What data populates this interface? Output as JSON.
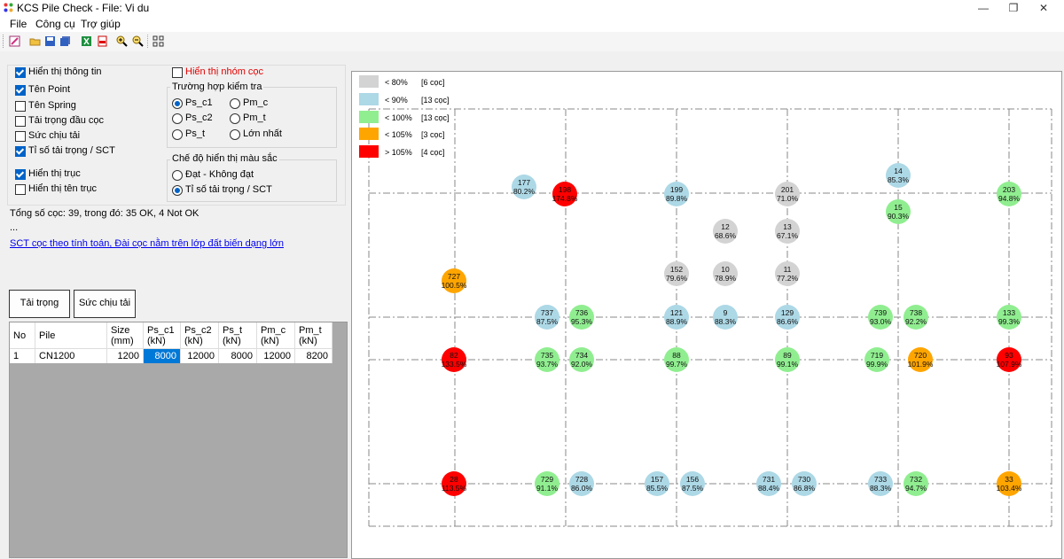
{
  "window": {
    "title": "KCS Pile Check - File: Vi du",
    "minimize": "—",
    "maximize": "❐",
    "close": "✕"
  },
  "menu": [
    "File",
    "Công cụ",
    "Trợ giúp"
  ],
  "toolbar_icons": [
    "edit-icon",
    "open-icon",
    "save-icon",
    "save-as-icon",
    "excel-icon",
    "pdf-icon",
    "zoom-in-icon",
    "zoom-out-icon",
    "grid-icon"
  ],
  "options": {
    "show_info": {
      "label": "Hiển thị thông tin",
      "checked": true
    },
    "point_name": {
      "label": "Tên Point",
      "checked": true
    },
    "spring_name": {
      "label": "Tên Spring",
      "checked": false
    },
    "head_load": {
      "label": "Tải trọng đầu cọc",
      "checked": false
    },
    "capacity": {
      "label": "Sức chịu tải",
      "checked": false
    },
    "ratio": {
      "label": "Tỉ số tải trọng / SCT",
      "checked": true
    },
    "show_axes": {
      "label": "Hiển thị trục",
      "checked": true
    },
    "show_axis_names": {
      "label": "Hiển thị tên trục",
      "checked": false
    },
    "show_groups": {
      "label": "Hiển thị nhóm cọc",
      "checked": false
    }
  },
  "check_case": {
    "title": "Trường hợp kiểm tra",
    "options": [
      {
        "label": "Ps_c1",
        "selected": true
      },
      {
        "label": "Pm_c",
        "selected": false
      },
      {
        "label": "Ps_c2",
        "selected": false
      },
      {
        "label": "Pm_t",
        "selected": false
      },
      {
        "label": "Ps_t",
        "selected": false
      },
      {
        "label": "Lớn nhất",
        "selected": false
      }
    ]
  },
  "color_mode": {
    "title": "Chế độ hiển thị màu sắc",
    "options": [
      {
        "label": "Đạt - Không đạt",
        "selected": false
      },
      {
        "label": "Tỉ số tải trọng / SCT",
        "selected": true
      }
    ]
  },
  "summary": "Tổng số cọc: 39, trong đó: 35 OK, 4 Not OK",
  "ellipsis": "...",
  "link": "SCT cọc theo tính toán, Đài cọc nằm trên lớp đất biến dạng lớn",
  "buttons": {
    "load": "Tải trọng",
    "capacity": "Sức chịu tải"
  },
  "table": {
    "headers": [
      "No",
      "Pile",
      "Size\n(mm)",
      "Ps_c1\n(kN)",
      "Ps_c2\n(kN)",
      "Ps_t\n(kN)",
      "Pm_c\n(kN)",
      "Pm_t\n(kN)"
    ],
    "rows": [
      [
        "1",
        "CN1200",
        "1200",
        "8000",
        "12000",
        "8000",
        "12000",
        "8200"
      ]
    ]
  },
  "legend": [
    {
      "label": "< 80%",
      "count": "[6 cọc]",
      "color": "#d3d3d3"
    },
    {
      "label": "< 90%",
      "count": "[13 cọc]",
      "color": "#add8e6"
    },
    {
      "label": "< 100%",
      "count": "[13 cọc]",
      "color": "#90ee90"
    },
    {
      "label": "< 105%",
      "count": "[3 cọc]",
      "color": "#ffa500"
    },
    {
      "label": "> 105%",
      "count": "[4 cọc]",
      "color": "#ff0000"
    }
  ],
  "piles": [
    {
      "name": "177",
      "ratio": "80.2%",
      "cat": 1
    },
    {
      "name": "198",
      "ratio": "174.8%",
      "cat": 4
    },
    {
      "name": "199",
      "ratio": "89.8%",
      "cat": 1
    },
    {
      "name": "201",
      "ratio": "71.0%",
      "cat": 0
    },
    {
      "name": "14",
      "ratio": "85.3%",
      "cat": 1
    },
    {
      "name": "203",
      "ratio": "94.8%",
      "cat": 2
    },
    {
      "name": "15",
      "ratio": "90.3%",
      "cat": 2
    },
    {
      "name": "12",
      "ratio": "68.6%",
      "cat": 0
    },
    {
      "name": "13",
      "ratio": "67.1%",
      "cat": 0
    },
    {
      "name": "727",
      "ratio": "100.5%",
      "cat": 3
    },
    {
      "name": "152",
      "ratio": "79.6%",
      "cat": 0
    },
    {
      "name": "10",
      "ratio": "78.9%",
      "cat": 0
    },
    {
      "name": "11",
      "ratio": "77.2%",
      "cat": 0
    },
    {
      "name": "737",
      "ratio": "87.5%",
      "cat": 1
    },
    {
      "name": "736",
      "ratio": "95.3%",
      "cat": 2
    },
    {
      "name": "121",
      "ratio": "88.9%",
      "cat": 1
    },
    {
      "name": "9",
      "ratio": "88.3%",
      "cat": 1
    },
    {
      "name": "129",
      "ratio": "86.6%",
      "cat": 1
    },
    {
      "name": "739",
      "ratio": "93.0%",
      "cat": 2
    },
    {
      "name": "738",
      "ratio": "92.2%",
      "cat": 2
    },
    {
      "name": "133",
      "ratio": "99.3%",
      "cat": 2
    },
    {
      "name": "82",
      "ratio": "133.5%",
      "cat": 4
    },
    {
      "name": "735",
      "ratio": "93.7%",
      "cat": 2
    },
    {
      "name": "734",
      "ratio": "92.0%",
      "cat": 2
    },
    {
      "name": "88",
      "ratio": "99.7%",
      "cat": 2
    },
    {
      "name": "89",
      "ratio": "99.1%",
      "cat": 2
    },
    {
      "name": "719",
      "ratio": "99.9%",
      "cat": 2
    },
    {
      "name": "720",
      "ratio": "101.9%",
      "cat": 3
    },
    {
      "name": "93",
      "ratio": "107.9%",
      "cat": 4
    },
    {
      "name": "28",
      "ratio": "113.5%",
      "cat": 4
    },
    {
      "name": "729",
      "ratio": "91.1%",
      "cat": 2
    },
    {
      "name": "728",
      "ratio": "86.0%",
      "cat": 1
    },
    {
      "name": "157",
      "ratio": "85.5%",
      "cat": 1
    },
    {
      "name": "156",
      "ratio": "87.5%",
      "cat": 1
    },
    {
      "name": "731",
      "ratio": "88.4%",
      "cat": 1
    },
    {
      "name": "730",
      "ratio": "86.8%",
      "cat": 1
    },
    {
      "name": "733",
      "ratio": "88.3%",
      "cat": 1
    },
    {
      "name": "732",
      "ratio": "94.7%",
      "cat": 2
    },
    {
      "name": "33",
      "ratio": "103.4%",
      "cat": 3
    }
  ]
}
